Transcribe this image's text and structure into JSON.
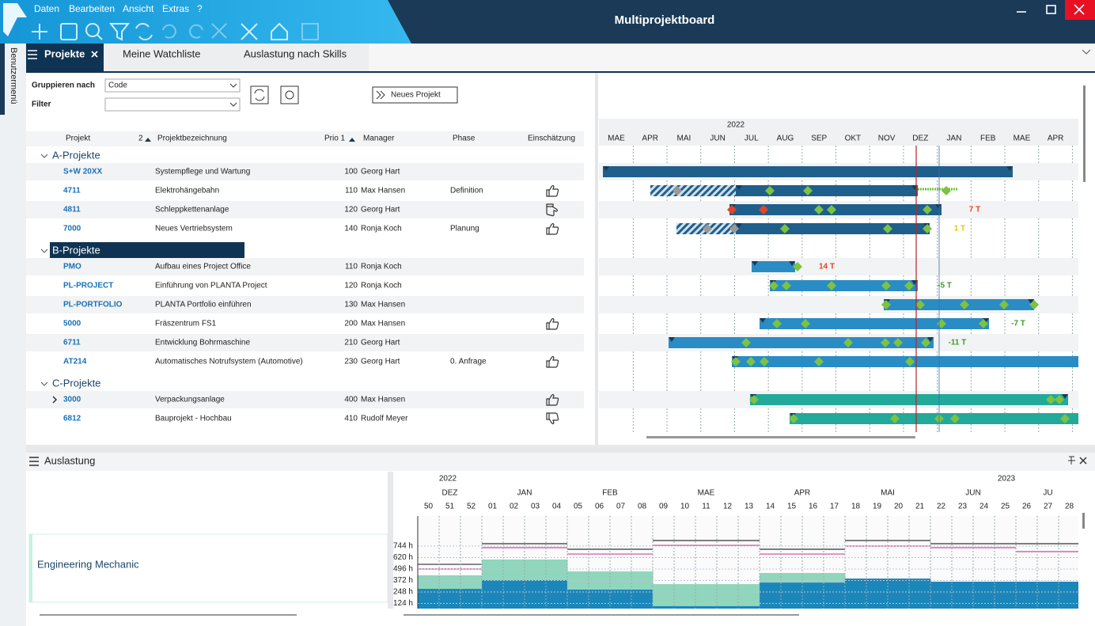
{
  "window": {
    "menu": [
      "Daten",
      "Bearbeiten",
      "Ansicht",
      "Extras",
      "?"
    ],
    "title": "Multiprojektboard"
  },
  "sidebar": "Benutzermenü",
  "tabs": [
    "Projekte",
    "Meine Watchliste",
    "Auslastung nach Skills"
  ],
  "controls": {
    "group_label": "Gruppieren nach",
    "group_value": "Code",
    "filter_label": "Filter",
    "new_project": "Neues Projekt"
  },
  "columns": [
    "Projekt",
    "2",
    "Projektbezeichnung",
    "Prio 1",
    "Manager",
    "Phase",
    "Einschätzung"
  ],
  "groups": [
    {
      "name": "A-Projekte",
      "rows": [
        {
          "code": "S+W 20XX",
          "name": "Systempflege und Wartung",
          "prio": 100,
          "manager": "Georg Hart"
        },
        {
          "code": "4711",
          "name": "Elektrohängebahn",
          "prio": 110,
          "manager": "Max Hansen",
          "phase": "Definition",
          "rating": "up"
        },
        {
          "code": "4811",
          "name": "Schleppkettenanlage",
          "prio": 120,
          "manager": "Georg Hart",
          "rating": "side",
          "delay": "7 T",
          "delay_color": "#e2452b"
        },
        {
          "code": "7000",
          "name": "Neues Vertriebsystem",
          "prio": 140,
          "manager": "Ronja Koch",
          "phase": "Planung",
          "rating": "up",
          "delay": "1 T",
          "delay_color": "#f2c200"
        }
      ]
    },
    {
      "name": "B-Projekte",
      "rows": [
        {
          "code": "PMO",
          "name": "Aufbau eines Project Office",
          "prio": 110,
          "manager": "Ronja Koch",
          "delay": "14 T",
          "delay_color": "#e2452b"
        },
        {
          "code": "PL-PROJECT",
          "name": "Einführung von PLANTA Project",
          "prio": 120,
          "manager": "Ronja Koch",
          "delay": "-5 T",
          "delay_color": "#3f9a2a"
        },
        {
          "code": "PL-PORTFOLIO",
          "name": "PLANTA Portfolio einführen",
          "prio": 130,
          "manager": "Max Hansen"
        },
        {
          "code": "5000",
          "name": "Fräszentrum FS1",
          "prio": 200,
          "manager": "Max Hansen",
          "rating": "up",
          "delay": "-7 T",
          "delay_color": "#3f9a2a"
        },
        {
          "code": "6711",
          "name": "Entwicklung Bohrmaschine",
          "prio": 210,
          "manager": "Georg Hart",
          "delay": "-11 T",
          "delay_color": "#3f9a2a"
        },
        {
          "code": "AT214",
          "name": "Automatisches Notrufsystem (Automotive)",
          "prio": 230,
          "manager": "Georg Hart",
          "phase": "0. Anfrage",
          "rating": "up"
        }
      ]
    },
    {
      "name": "C-Projekte",
      "rows": [
        {
          "code": "3000",
          "name": "Verpackungsanlage",
          "prio": 400,
          "manager": "Max Hansen",
          "rating": "up"
        },
        {
          "code": "6812",
          "name": "Bauprojekt - Hochbau",
          "prio": 410,
          "manager": "Rudolf Meyer",
          "rating": "down"
        }
      ]
    }
  ],
  "gantt": {
    "year": "2022",
    "months": [
      "MAE",
      "APR",
      "MAI",
      "JUN",
      "JUL",
      "AUG",
      "SEP",
      "OKT",
      "NOV",
      "DEZ",
      "JAN",
      "FEB",
      "MAE",
      "APR"
    ]
  },
  "workload": {
    "title": "Auslastung",
    "resource": "Engineering Mechanic",
    "years": [
      "2022",
      "2023"
    ],
    "months": [
      "DEZ",
      "JAN",
      "FEB",
      "MAE",
      "APR",
      "MAI",
      "JUN",
      "JU"
    ],
    "weeks": [
      "50",
      "51",
      "52",
      "01",
      "02",
      "03",
      "04",
      "05",
      "06",
      "07",
      "08",
      "09",
      "10",
      "11",
      "12",
      "13",
      "14",
      "15",
      "16",
      "17",
      "18",
      "19",
      "20",
      "21",
      "22",
      "23",
      "24",
      "25",
      "26",
      "27",
      "28"
    ],
    "ylim": [
      0,
      1069
    ],
    "yticks": [
      {
        "value": 124,
        "label": "124 h"
      },
      {
        "value": 248,
        "label": "248 h"
      },
      {
        "value": 372,
        "label": "372 h"
      },
      {
        "value": 496,
        "label": "496 h"
      },
      {
        "value": 620,
        "label": "620 h"
      },
      {
        "value": 744,
        "label": "744 h"
      }
    ],
    "series": [
      {
        "color": "#1b86ba",
        "values": [
          282,
          282,
          282,
          376,
          376,
          376,
          376,
          274,
          274,
          274,
          274,
          94,
          94,
          94,
          94,
          94,
          350,
          350,
          350,
          350,
          393,
          393,
          393,
          393,
          359,
          359,
          359,
          359,
          359,
          359,
          359
        ]
      },
      {
        "color": "#8fd6bd",
        "values": [
          146,
          146,
          146,
          223,
          223,
          223,
          223,
          196,
          196,
          196,
          196,
          239,
          239,
          239,
          239,
          239,
          103,
          103,
          103,
          103,
          0,
          0,
          0,
          0,
          0,
          0,
          0,
          0,
          0,
          0,
          0
        ]
      }
    ],
    "lines": [
      {
        "color": "#333333",
        "values": [
          547,
          547,
          547,
          770,
          770,
          770,
          770,
          710,
          710,
          710,
          710,
          804,
          804,
          804,
          804,
          804,
          710,
          710,
          710,
          710,
          804,
          804,
          804,
          804,
          770,
          770,
          770,
          770,
          770,
          770,
          770
        ]
      },
      {
        "color": "#d0479a",
        "values": [
          496,
          496,
          496,
          727,
          727,
          727,
          727,
          658,
          658,
          658,
          658,
          752,
          752,
          752,
          752,
          752,
          658,
          658,
          658,
          658,
          744,
          744,
          744,
          744,
          727,
          727,
          727,
          727,
          684,
          684,
          684
        ]
      }
    ]
  }
}
